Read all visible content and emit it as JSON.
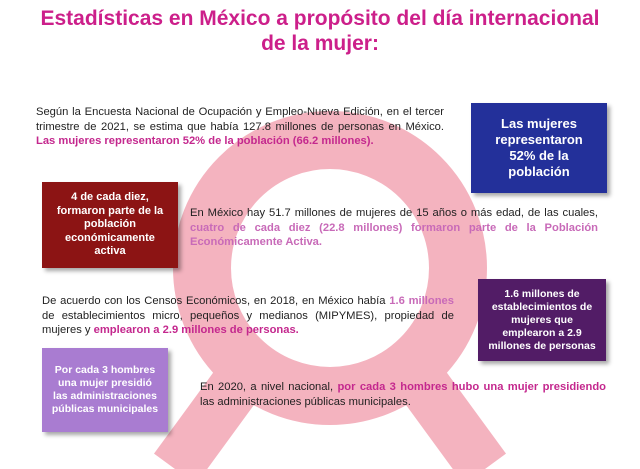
{
  "title": {
    "line1": "Estadísticas en México a propósito del día internacional",
    "line2": "de la mujer:"
  },
  "colors": {
    "title": "#cc1f8a",
    "highlight": "#c4288e",
    "highlight_light": "#c86ab8",
    "watermark": "#f4b3bf",
    "box_blue": "#23309a",
    "box_red": "#8c1414",
    "box_purple": "#521c66",
    "box_lavender": "#a97cd1"
  },
  "watermark_icon": "female-symbol-icon",
  "paragraphs": {
    "p1": {
      "text": "Según la Encuesta Nacional de Ocupación y Empleo-Nueva Edición, en el tercer trimestre de 2021, se estima que había 127.8 millones de personas en México. ",
      "highlight": "Las mujeres representaron 52% de la población (66.2 millones)."
    },
    "p2": {
      "text": "En México hay 51.7 millones de mujeres de 15 años o más edad, de las cuales, ",
      "highlight": "cuatro de cada diez (22.8 millones) formaron parte de la Población Económicamente Activa."
    },
    "p3": {
      "t1": "De acuerdo con los Censos Económicos, en 2018, en México había ",
      "h1": "1.6 millones",
      "t2": " de establecimientos micro, pequeños y medianos (MIPYMES), propiedad de mujeres y ",
      "h2": "emplearon a 2.9 millones de personas."
    },
    "p4": {
      "t1": "En 2020, a nivel nacional, ",
      "h1": "por cada 3 hombres hubo una mujer presidiendo",
      "t2": " las administraciones públicas municipales."
    }
  },
  "boxes": {
    "box1": [
      "Las mujeres",
      "representaron",
      "52% de la",
      "población"
    ],
    "box2": [
      "4 de cada diez,",
      "formaron parte de la",
      "población",
      "económicamente",
      "activa"
    ],
    "box3": [
      "1.6 millones de",
      "establecimientos de",
      "mujeres que",
      "emplearon a 2.9",
      "millones de personas"
    ],
    "box4": [
      "Por cada 3 hombres",
      "una mujer presidió",
      "las administraciones",
      "públicas municipales"
    ]
  }
}
